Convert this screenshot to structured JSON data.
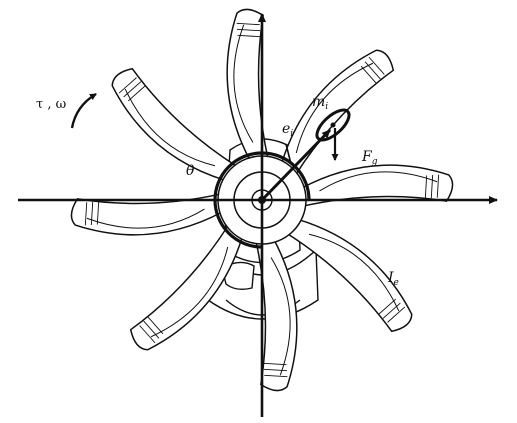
{
  "diagram": {
    "labels": {
      "torque_omega": "τ , ω",
      "angle": "θ",
      "mass": "m",
      "mass_sub": "i",
      "eccentricity": "e",
      "eccentricity_sub": "i",
      "force": "F",
      "force_sub": "g",
      "inertia": "I",
      "inertia_sub": "e"
    },
    "colors": {
      "line": "#111111",
      "paddle_fill": "#ffffff",
      "background": "#ffffff"
    },
    "paddle_count": 8
  }
}
